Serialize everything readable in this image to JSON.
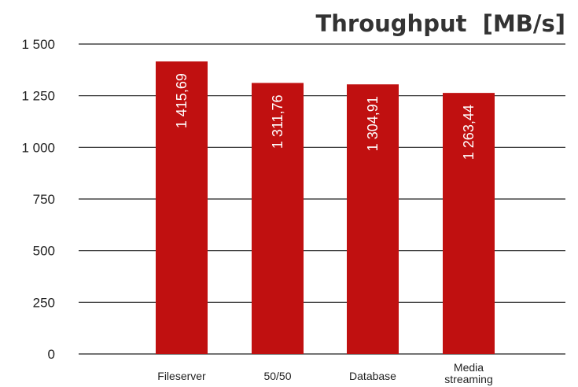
{
  "chart_data": {
    "type": "bar",
    "title": "Throughput  [MB/s]",
    "categories": [
      "Fileserver",
      "50/50",
      "Database",
      "Media streaming"
    ],
    "category_lines": [
      [
        "Fileserver"
      ],
      [
        "50/50"
      ],
      [
        "Database"
      ],
      [
        "Media",
        "streaming"
      ]
    ],
    "values": [
      1415.69,
      1311.76,
      1304.91,
      1263.44
    ],
    "value_labels": [
      "1 415,69",
      "1 311,76",
      "1 304,91",
      "1 263,44"
    ],
    "ylim": [
      0,
      1500
    ],
    "yticks": [
      0,
      250,
      500,
      750,
      1000,
      1250,
      1500
    ],
    "ytick_labels": [
      "0",
      "250",
      "500",
      "750",
      "1 000",
      "1 250",
      "1 500"
    ],
    "xlabel": "",
    "ylabel": "",
    "grid": true,
    "bar_color": "#c01010"
  }
}
